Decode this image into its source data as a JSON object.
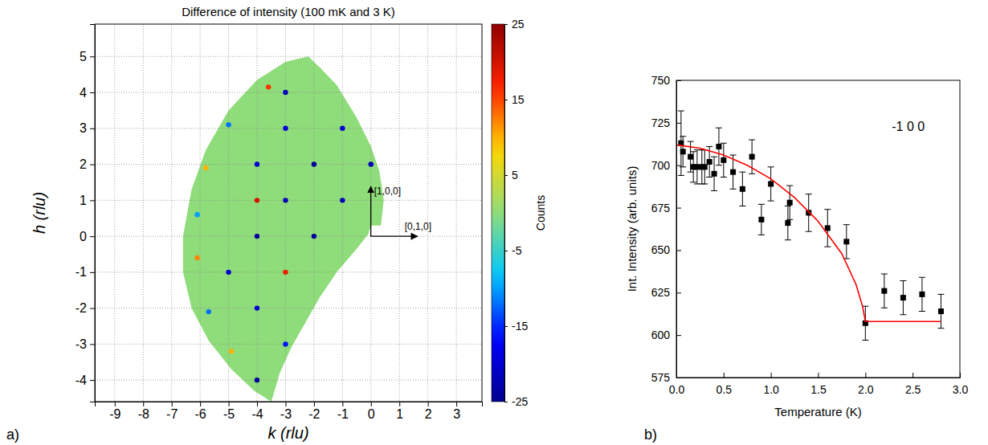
{
  "chart_data": [
    {
      "type": "map",
      "panel": "a)",
      "title": "Difference of intensity (100 mK and 3 K)",
      "x_label": "k (rlu)",
      "y_label": "h (rlu)",
      "xlim": [
        -9.7,
        3.9
      ],
      "ylim": [
        -4.6,
        5.9
      ],
      "xticks": [
        -9,
        -8,
        -7,
        -6,
        -5,
        -4,
        -3,
        -2,
        -1,
        0,
        1,
        2,
        3
      ],
      "yticks": [
        -4,
        -3,
        -2,
        -1,
        0,
        1,
        2,
        3,
        4,
        5
      ],
      "grid": true,
      "region": {
        "k": [
          -2.2,
          -3.0,
          -4.0,
          -5.0,
          -5.8,
          -6.3,
          -6.6,
          -6.6,
          -6.3,
          -5.7,
          -4.9,
          -4.1,
          -3.5,
          -3.2,
          -2.8,
          -2.3,
          -1.8,
          -1.2,
          -0.5,
          -0.1,
          0.0,
          0.35,
          0.45,
          0.3,
          0.0,
          -0.5,
          -1.2,
          -1.8
        ],
        "h": [
          5.0,
          4.85,
          4.35,
          3.5,
          2.4,
          1.3,
          0.0,
          -1.0,
          -2.0,
          -2.9,
          -3.7,
          -4.3,
          -4.6,
          -3.8,
          -3.1,
          -2.4,
          -1.7,
          -1.0,
          -0.35,
          0.05,
          0.3,
          0.3,
          1.0,
          1.8,
          2.5,
          3.3,
          4.2,
          4.7
        ],
        "value": 0
      },
      "spots": {
        "k": [
          -3,
          -3.6,
          -1,
          -3,
          0,
          -2,
          -4,
          -1,
          -3,
          -4,
          -2,
          -4,
          -3,
          -5,
          -4,
          -3,
          -4,
          -5.0,
          -5.8,
          -6.1,
          -6.1,
          -5.7,
          -4.9
        ],
        "h": [
          4,
          4.15,
          3,
          3,
          2,
          2,
          2,
          1,
          1,
          1,
          0,
          0,
          -1,
          -1,
          -2,
          -3,
          -4,
          3.1,
          1.9,
          0.6,
          -0.6,
          -2.1,
          -3.2
        ],
        "values": [
          -22,
          16,
          -20,
          -20,
          -22,
          -24,
          -20,
          -22,
          -22,
          20,
          -24,
          -24,
          18,
          -20,
          -20,
          -16,
          -24,
          -12,
          10,
          -10,
          12,
          -12,
          10
        ]
      },
      "colorbar": {
        "label": "Counts",
        "range": [
          -25,
          25
        ],
        "ticks": [
          -25,
          -15,
          -5,
          5,
          15,
          25
        ]
      },
      "annotations": [
        "[1,0,0]",
        "[0,1,0]"
      ]
    },
    {
      "type": "scatter",
      "panel": "b)",
      "x_label": "Temperature (K)",
      "y_label": "Int. Intensity (arb. units)",
      "annotations": [
        "-1 0 0"
      ],
      "xlim": [
        0,
        3
      ],
      "ylim": [
        575,
        750
      ],
      "xticks": [
        {
          "value": 0,
          "label": "0.0"
        },
        {
          "value": 0.5,
          "label": "0.5"
        },
        {
          "value": 1,
          "label": "1.0"
        },
        {
          "value": 1.5,
          "label": "1.5"
        },
        {
          "value": 2,
          "label": "2.0"
        },
        {
          "value": 2.5,
          "label": "2.5"
        },
        {
          "value": 3,
          "label": "3.0"
        }
      ],
      "yticks": [
        575,
        600,
        625,
        650,
        675,
        700,
        725,
        750
      ],
      "grid": false,
      "series": [
        {
          "type": "scatter",
          "color": "#000000",
          "marker": "square",
          "x": [
            0.05,
            0.07,
            0.15,
            0.18,
            0.22,
            0.27,
            0.3,
            0.35,
            0.4,
            0.45,
            0.5,
            0.6,
            0.7,
            0.8,
            0.9,
            1.0,
            1.18,
            1.2,
            1.4,
            1.6,
            1.8,
            2.0,
            2.2,
            2.4,
            2.6,
            2.8
          ],
          "values": [
            713,
            708,
            705,
            699,
            699,
            699,
            699,
            702,
            695,
            711,
            703,
            696,
            686,
            705,
            668,
            689,
            666,
            678,
            672,
            663,
            655,
            607,
            626,
            622,
            624,
            614
          ],
          "errors": [
            19,
            9,
            9,
            9,
            10,
            10,
            10,
            9,
            10,
            11,
            10,
            10,
            10,
            10,
            9,
            10,
            10,
            10,
            11,
            11,
            10,
            10,
            10,
            10,
            10,
            10
          ]
        },
        {
          "type": "line",
          "color": "#ff0000",
          "line_style": "solid",
          "x": [
            0.0,
            0.25,
            0.5,
            0.75,
            1.0,
            1.25,
            1.5,
            1.75,
            1.9,
            1.97,
            2.0,
            2.8
          ],
          "values": [
            712,
            710,
            706,
            700,
            692,
            681,
            667,
            648,
            630,
            617,
            608,
            608
          ]
        }
      ]
    }
  ]
}
